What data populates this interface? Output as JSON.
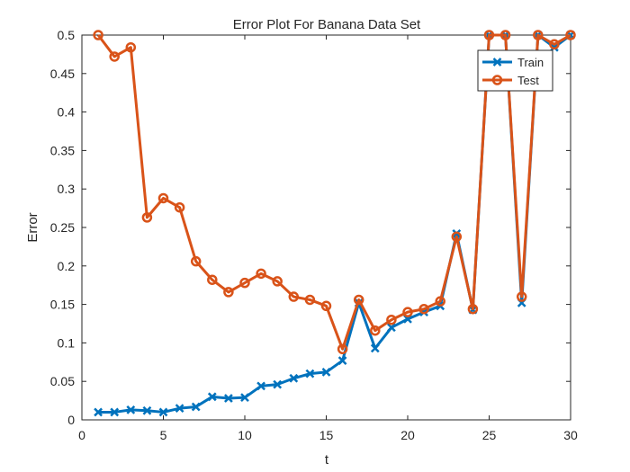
{
  "chart_data": {
    "type": "line",
    "title": "Error Plot For Banana Data Set",
    "xlabel": "t",
    "ylabel": "Error",
    "xlim": [
      0,
      30
    ],
    "ylim": [
      0,
      0.5
    ],
    "xticks": [
      "0",
      "5",
      "10",
      "15",
      "20",
      "25",
      "30"
    ],
    "yticks": [
      "0",
      "0.05",
      "0.1",
      "0.15",
      "0.2",
      "0.25",
      "0.3",
      "0.35",
      "0.4",
      "0.45",
      "0.5"
    ],
    "grid": false,
    "legend_position": "top-right",
    "x": [
      1,
      2,
      3,
      4,
      5,
      6,
      7,
      8,
      9,
      10,
      11,
      12,
      13,
      14,
      15,
      16,
      17,
      18,
      19,
      20,
      21,
      22,
      23,
      24,
      25,
      26,
      27,
      28,
      29,
      30
    ],
    "series": [
      {
        "name": "Train",
        "color": "#0072BD",
        "marker": "x",
        "values": [
          0.01,
          0.01,
          0.013,
          0.012,
          0.01,
          0.015,
          0.017,
          0.03,
          0.028,
          0.029,
          0.044,
          0.046,
          0.054,
          0.06,
          0.062,
          0.077,
          0.152,
          0.093,
          0.12,
          0.131,
          0.14,
          0.148,
          0.242,
          0.143,
          0.5,
          0.5,
          0.152,
          0.5,
          0.484,
          0.5
        ]
      },
      {
        "name": "Test",
        "color": "#D95319",
        "marker": "o",
        "values": [
          0.5,
          0.472,
          0.484,
          0.263,
          0.288,
          0.276,
          0.206,
          0.182,
          0.166,
          0.178,
          0.19,
          0.18,
          0.16,
          0.156,
          0.148,
          0.092,
          0.156,
          0.116,
          0.13,
          0.14,
          0.144,
          0.154,
          0.238,
          0.144,
          0.5,
          0.5,
          0.16,
          0.5,
          0.488,
          0.5
        ]
      }
    ]
  }
}
